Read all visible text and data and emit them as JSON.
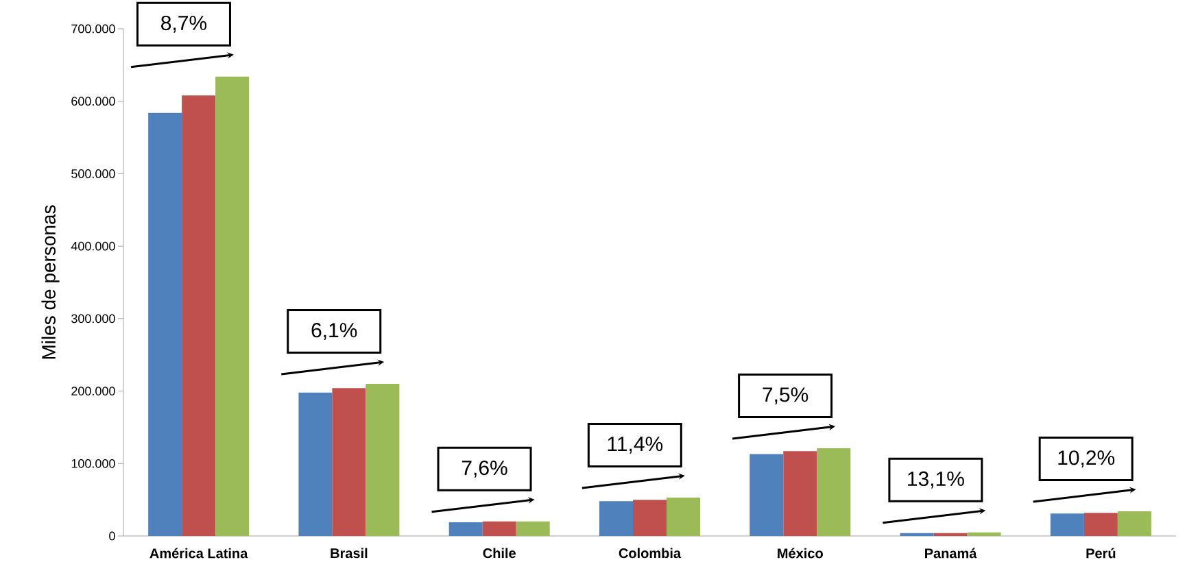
{
  "chart_data": {
    "type": "bar",
    "ylabel": "Miles de personas",
    "categories": [
      "América Latina",
      "Brasil",
      "Chile",
      "Colombia",
      "México",
      "Panamá",
      "Perú"
    ],
    "series": [
      {
        "color": "#4f81bd",
        "values": [
          584000,
          198000,
          19000,
          48000,
          113000,
          4000,
          31000
        ]
      },
      {
        "color": "#c0504d",
        "values": [
          608000,
          204000,
          20000,
          50000,
          117000,
          4000,
          32000
        ]
      },
      {
        "color": "#9bbb59",
        "values": [
          634000,
          210000,
          20000,
          53000,
          121000,
          5000,
          34000
        ]
      }
    ],
    "ylim": [
      0,
      700000
    ],
    "yticks": [
      0,
      {
        "value": 100000,
        "label": "100.000"
      },
      {
        "value": 200000,
        "label": "200.000"
      },
      {
        "value": 300000,
        "label": "300.000"
      },
      {
        "value": 400000,
        "label": "400.000"
      },
      {
        "value": 500000,
        "label": "500.000"
      },
      {
        "value": 600000,
        "label": "600.000"
      },
      {
        "value": 700000,
        "label": "700.000"
      }
    ],
    "annotations": [
      "8,7%",
      "6,1%",
      "7,6%",
      "11,4%",
      "7,5%",
      "13,1%",
      "10,2%"
    ],
    "grid": false
  }
}
